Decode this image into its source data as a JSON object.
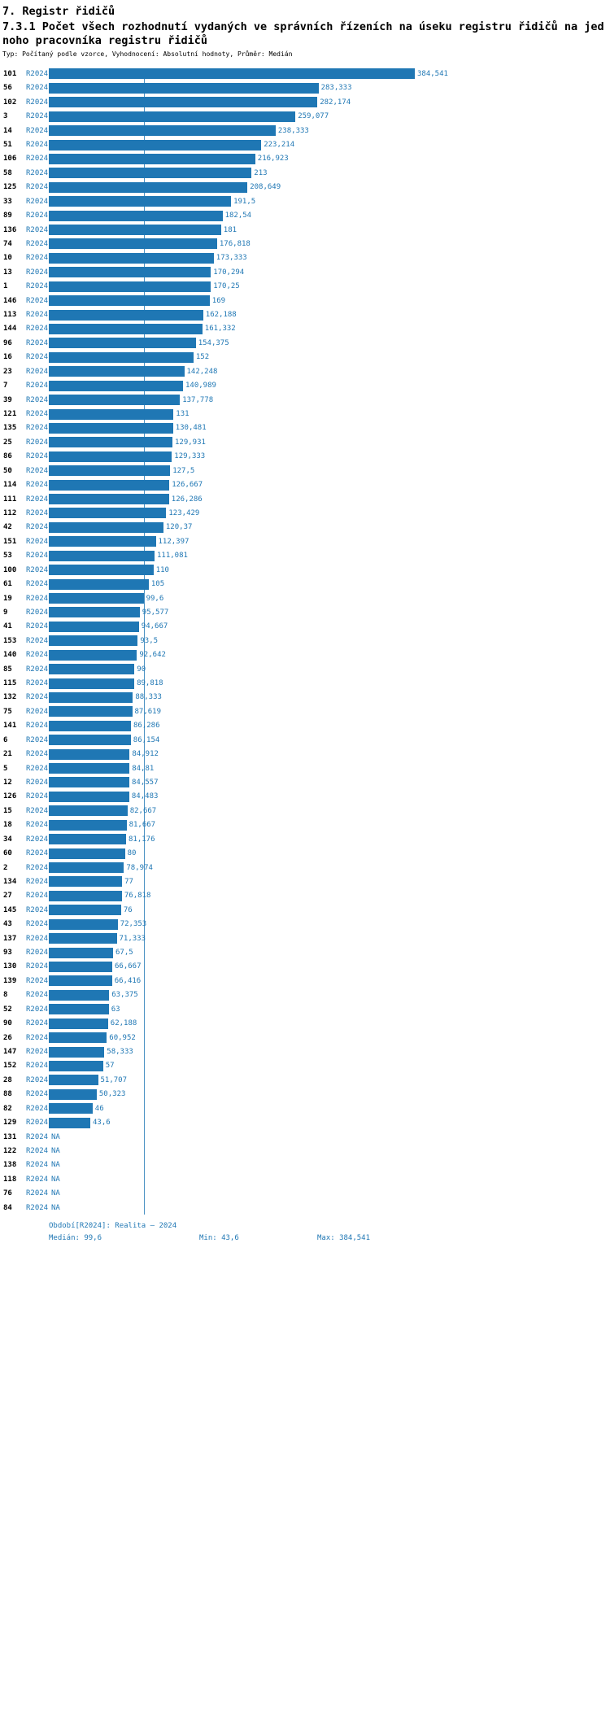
{
  "header": {
    "section_title": "7. Registr řidičů",
    "indicator_title": "7.3.1 Počet všech rozhodnutí vydaných ve správních řízeních na úseku registru řidičů na jednoho pracovníka registru řidičů",
    "meta": "Typ: Počítaný podle vzorce, Vyhodnocení: Absolutní hodnoty, Průměr: Medián"
  },
  "chart_data": {
    "type": "bar",
    "orientation": "horizontal",
    "title": "7.3.1 Počet všech rozhodnutí vydaných ve správních řízeních na úseku registru řidičů na jednoho pracovníka registru řidičů",
    "series_name": "R2024",
    "bar_color": "#1f77b4",
    "grid": false,
    "legend": false,
    "average_marker": "⌀",
    "median": 99.6,
    "min": 43.6,
    "max": 384.541,
    "na_label": "NA",
    "categories": [
      "101",
      "56",
      "102",
      "3",
      "14",
      "51",
      "106",
      "58",
      "125",
      "33",
      "89",
      "136",
      "74",
      "10",
      "13",
      "1",
      "146",
      "113",
      "144",
      "96",
      "16",
      "23",
      "7",
      "39",
      "121",
      "135",
      "25",
      "86",
      "50",
      "114",
      "111",
      "112",
      "42",
      "151",
      "53",
      "100",
      "61",
      "19",
      "9",
      "41",
      "153",
      "140",
      "85",
      "115",
      "132",
      "75",
      "141",
      "6",
      "21",
      "5",
      "12",
      "126",
      "15",
      "18",
      "34",
      "60",
      "2",
      "134",
      "27",
      "145",
      "43",
      "137",
      "93",
      "130",
      "139",
      "8",
      "52",
      "90",
      "26",
      "147",
      "152",
      "28",
      "88",
      "82",
      "129",
      "131",
      "122",
      "138",
      "118",
      "76",
      "84"
    ],
    "values": [
      384.541,
      283.333,
      282.174,
      259.077,
      238.333,
      223.214,
      216.923,
      213,
      208.649,
      191.5,
      182.54,
      181,
      176.818,
      173.333,
      170.294,
      170.25,
      169,
      162.188,
      161.332,
      154.375,
      152,
      142.248,
      140.989,
      137.778,
      131,
      130.481,
      129.931,
      129.333,
      127.5,
      126.667,
      126.286,
      123.429,
      120.37,
      112.397,
      111.081,
      110,
      105,
      99.6,
      95.577,
      94.667,
      93.5,
      92.642,
      90,
      89.818,
      88.333,
      87.619,
      86.286,
      86.154,
      84.912,
      84.81,
      84.557,
      84.483,
      82.667,
      81.667,
      81.176,
      80,
      78.974,
      77,
      76.818,
      76,
      72.353,
      71.333,
      67.5,
      66.667,
      66.416,
      63.375,
      63,
      62.188,
      60.952,
      58.333,
      57,
      51.707,
      50.323,
      46,
      43.6,
      null,
      null,
      null,
      null,
      null,
      null
    ],
    "value_labels": [
      "384,541",
      "283,333",
      "282,174",
      "259,077",
      "238,333",
      "223,214",
      "216,923",
      "213",
      "208,649",
      "191,5",
      "182,54",
      "181",
      "176,818",
      "173,333",
      "170,294",
      "170,25",
      "169",
      "162,188",
      "161,332",
      "154,375",
      "152",
      "142,248",
      "140,989",
      "137,778",
      "131",
      "130,481",
      "129,931",
      "129,333",
      "127,5",
      "126,667",
      "126,286",
      "123,429",
      "120,37",
      "112,397",
      "111,081",
      "110",
      "105",
      "99,6",
      "95,577",
      "94,667",
      "93,5",
      "92,642",
      "90",
      "89,818",
      "88,333",
      "87,619",
      "86,286",
      "86,154",
      "84,912",
      "84,81",
      "84,557",
      "84,483",
      "82,667",
      "81,667",
      "81,176",
      "80",
      "78,974",
      "77",
      "76,818",
      "76",
      "72,353",
      "71,333",
      "67,5",
      "66,667",
      "66,416",
      "63,375",
      "63",
      "62,188",
      "60,952",
      "58,333",
      "57",
      "51,707",
      "50,323",
      "46",
      "43,6",
      "NA",
      "NA",
      "NA",
      "NA",
      "NA",
      "NA"
    ]
  },
  "footer": {
    "period": "Období[R2024]: Realita – 2024",
    "median": "Medián: 99,6",
    "min": "Min: 43,6",
    "max": "Max: 384,541"
  }
}
